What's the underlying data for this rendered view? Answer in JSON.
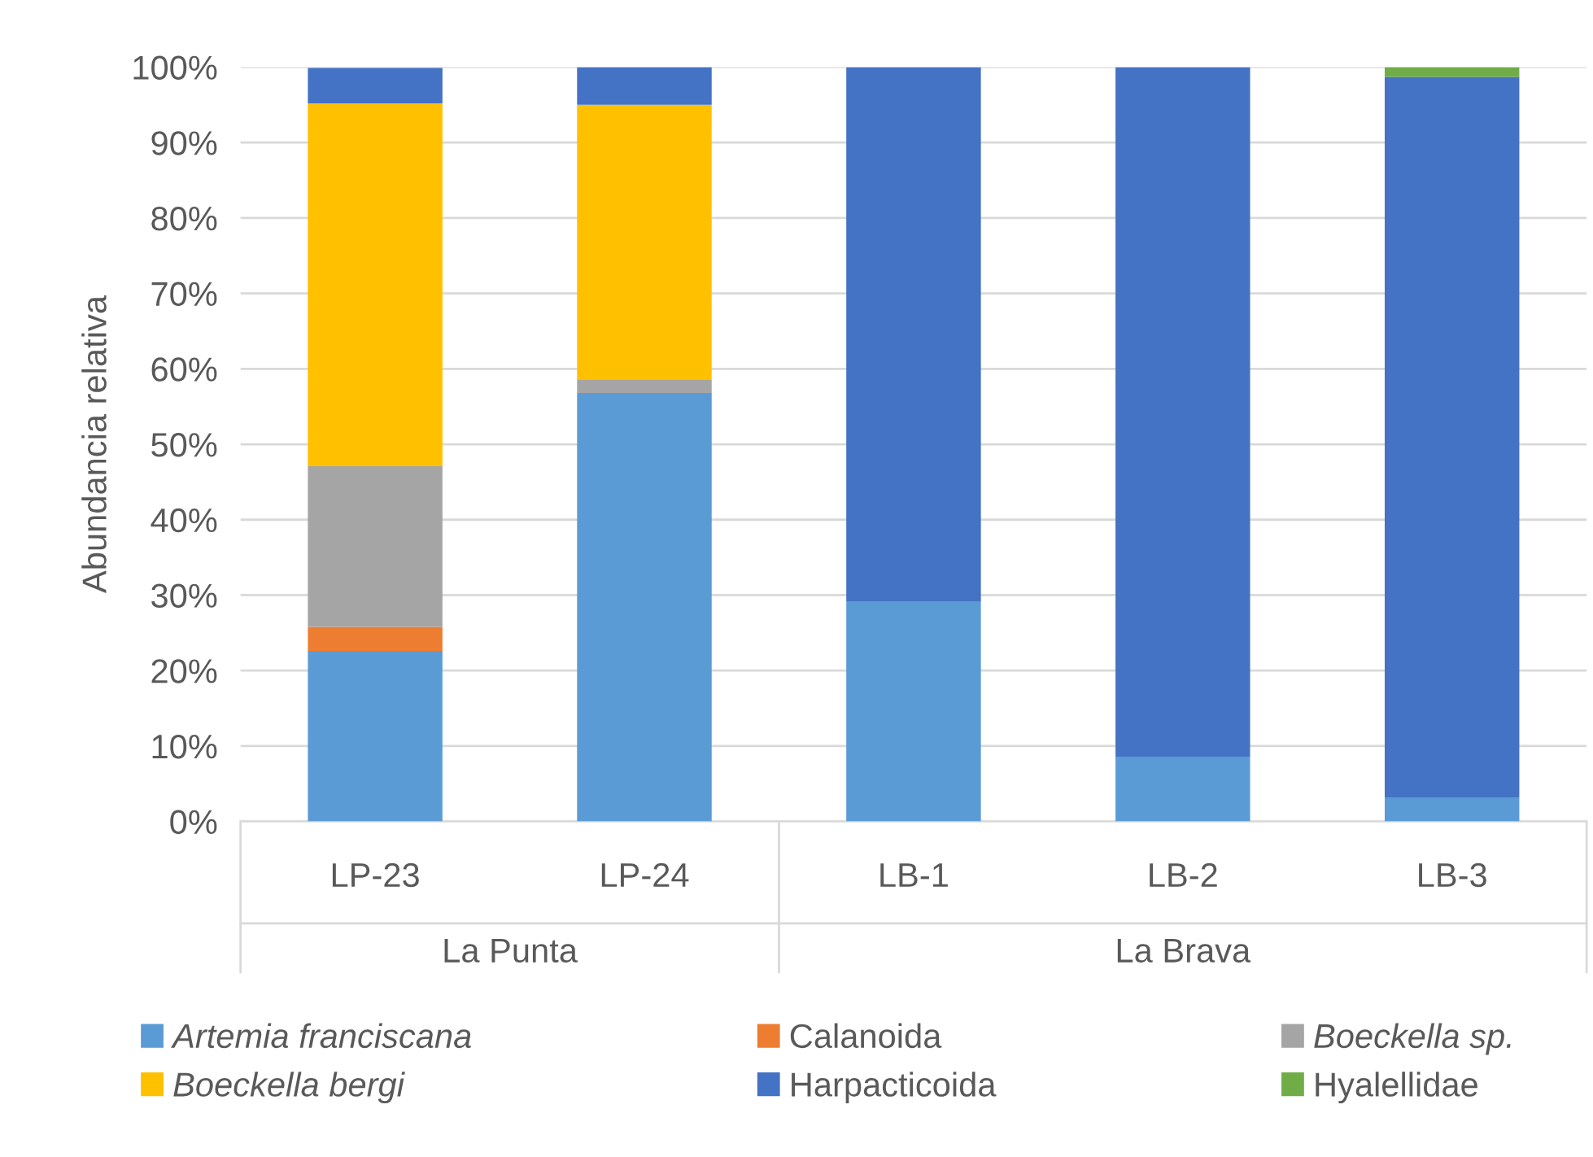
{
  "chart_data": {
    "type": "bar",
    "stacked": true,
    "ylabel": "Abundancia relativa",
    "categories": [
      "LP-23",
      "LP-24",
      "LB-1",
      "LB-2",
      "LB-3"
    ],
    "series": [
      {
        "name": "Artemia franciscana",
        "color": "#5b9bd5",
        "values": [
          22.6,
          56.8,
          29.1,
          8.6,
          3.2
        ]
      },
      {
        "name": "Calanoida",
        "color": "#ed7d31",
        "values": [
          3.2,
          0,
          0,
          0,
          0
        ]
      },
      {
        "name": "Boeckella sp.",
        "color": "#a5a5a5",
        "values": [
          21.3,
          1.8,
          0,
          0,
          0
        ]
      },
      {
        "name": "Boeckella bergi",
        "color": "#ffc000",
        "values": [
          48.1,
          36.4,
          0,
          0,
          0
        ]
      },
      {
        "name": "Harpacticoida",
        "color": "#4472c4",
        "values": [
          4.7,
          5.0,
          70.9,
          91.4,
          95.5
        ]
      },
      {
        "name": "Hyalellidae",
        "color": "#70ad47",
        "values": [
          0,
          0,
          0,
          0,
          1.3
        ]
      }
    ],
    "ylim": [
      0,
      100
    ],
    "yticks": [
      {
        "value": 0,
        "label": "0%"
      },
      {
        "value": 10,
        "label": "10%"
      },
      {
        "value": 20,
        "label": "20%"
      },
      {
        "value": 30,
        "label": "30%"
      },
      {
        "value": 40,
        "label": "40%"
      },
      {
        "value": 50,
        "label": "50%"
      },
      {
        "value": 60,
        "label": "60%"
      },
      {
        "value": 70,
        "label": "70%"
      },
      {
        "value": 80,
        "label": "80%"
      },
      {
        "value": 90,
        "label": "90%"
      },
      {
        "value": 100,
        "label": "100%"
      }
    ],
    "annotations": [
      "La Punta",
      "La Brava"
    ],
    "grid": "y",
    "legend": "bottom"
  }
}
